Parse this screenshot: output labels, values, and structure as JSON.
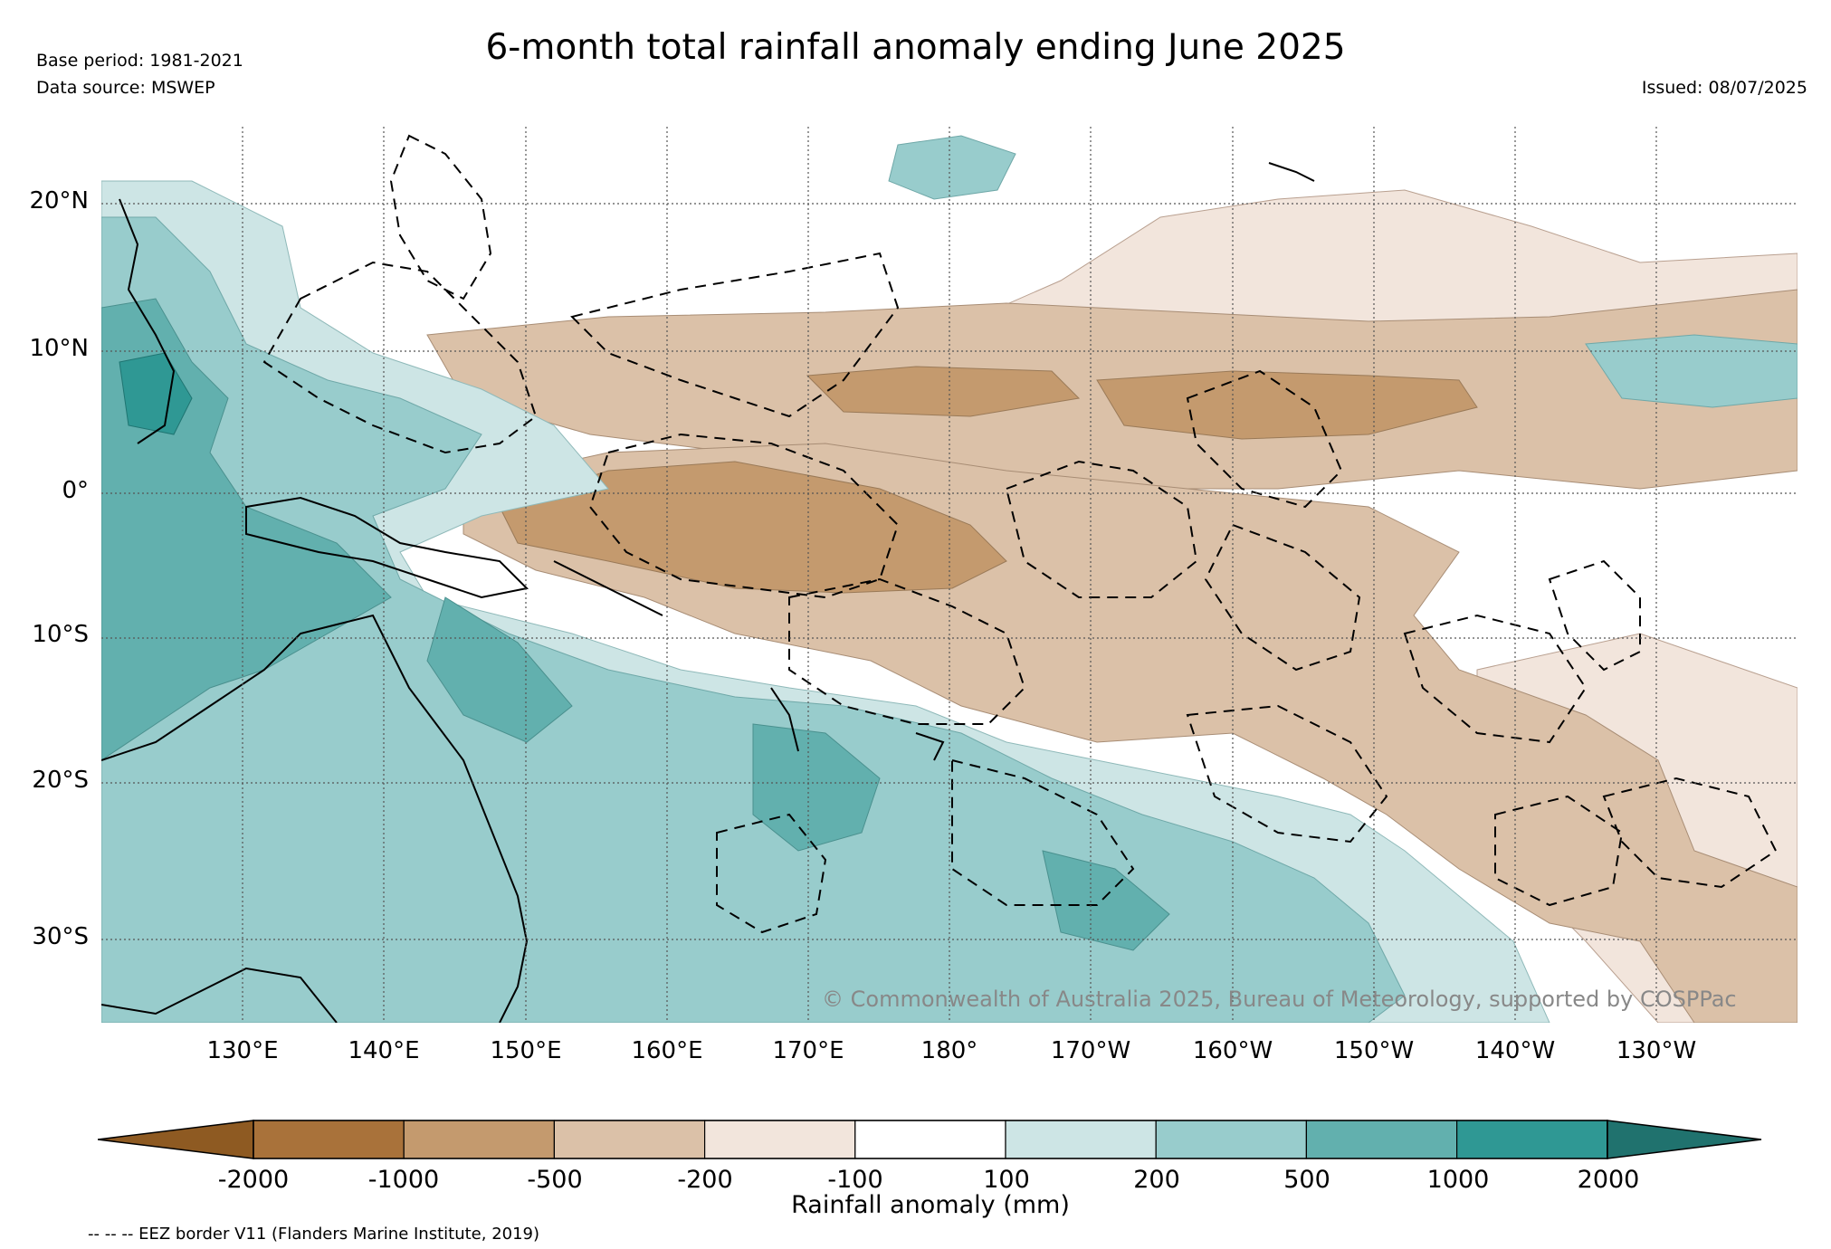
{
  "header": {
    "title": "6-month total rainfall anomaly ending June 2025",
    "base_period": "Base period: 1981-2021",
    "data_source": "Data source: MSWEP",
    "issued": "Issued: 08/07/2025"
  },
  "map": {
    "region": "Western and Central Pacific",
    "lon_range": [
      "120°E",
      "120°W"
    ],
    "lat_range": [
      "35°S",
      "25°N"
    ],
    "lat_labels": [
      "20°N",
      "10°N",
      "0°",
      "10°S",
      "20°S",
      "30°S"
    ],
    "lon_labels": [
      "130°E",
      "140°E",
      "150°E",
      "160°E",
      "170°E",
      "180°",
      "170°W",
      "160°W",
      "150°W",
      "140°W",
      "130°W"
    ],
    "gridlines": true,
    "copyright": "© Commonwealth of Australia 2025, Bureau of Meteorology, supported by COSPPac"
  },
  "legend": {
    "label": "Rainfall anomaly (mm)",
    "ticks": [
      "-2000",
      "-1000",
      "-500",
      "-200",
      "-100",
      "100",
      "200",
      "500",
      "1000",
      "2000"
    ],
    "colors": [
      "#8e5a22",
      "#a9723a",
      "#c49a6e",
      "#dbc1a8",
      "#f2e5dc",
      "#ffffff",
      "#cde5e5",
      "#98cccc",
      "#62b0ae",
      "#2f9894",
      "#20726e"
    ],
    "footnote": "-- -- -- EEZ border V11 (Flanders Marine Institute, 2019)"
  }
}
